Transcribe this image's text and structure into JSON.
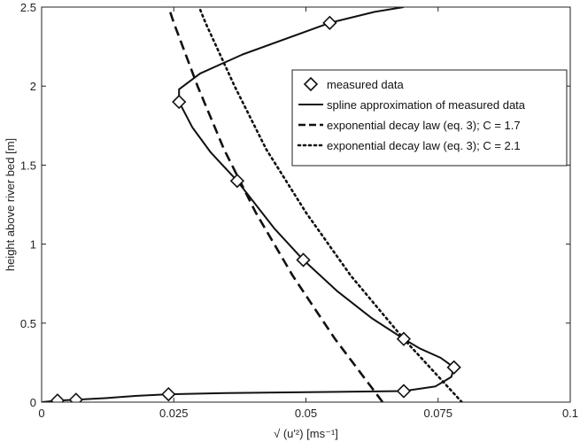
{
  "chart_data": {
    "type": "line",
    "title": "",
    "xlabel": "√ (u'²) [ms⁻¹]",
    "ylabel": "height above river bed [m]",
    "xlim": [
      0,
      0.1
    ],
    "ylim": [
      0,
      2.5
    ],
    "x_ticks": [
      {
        "value": 0,
        "label": "0"
      },
      {
        "value": 0.025,
        "label": "0.025"
      },
      {
        "value": 0.05,
        "label": "0.05"
      },
      {
        "value": 0.075,
        "label": "0.075"
      },
      {
        "value": 0.1,
        "label": "0.1"
      }
    ],
    "y_ticks": [
      {
        "value": 0,
        "label": "0"
      },
      {
        "value": 0.5,
        "label": "0.5"
      },
      {
        "value": 1,
        "label": "1"
      },
      {
        "value": 1.5,
        "label": "1.5"
      },
      {
        "value": 2,
        "label": "2"
      },
      {
        "value": 2.5,
        "label": "2.5"
      }
    ],
    "grid": false,
    "legend_position": "top-right",
    "series": [
      {
        "name": "measured data",
        "style": "diamond-marker",
        "points": [
          {
            "x": 0.003,
            "y": 0.01
          },
          {
            "x": 0.0065,
            "y": 0.015
          },
          {
            "x": 0.024,
            "y": 0.05
          },
          {
            "x": 0.0685,
            "y": 0.07
          },
          {
            "x": 0.078,
            "y": 0.22
          },
          {
            "x": 0.0685,
            "y": 0.4
          },
          {
            "x": 0.0495,
            "y": 0.9
          },
          {
            "x": 0.037,
            "y": 1.4
          },
          {
            "x": 0.026,
            "y": 1.9
          },
          {
            "x": 0.0545,
            "y": 2.4
          }
        ]
      },
      {
        "name": "spline approximation of measured data",
        "style": "solid",
        "points": [
          {
            "x": 0.0,
            "y": 0.0
          },
          {
            "x": 0.003,
            "y": 0.01
          },
          {
            "x": 0.0065,
            "y": 0.015
          },
          {
            "x": 0.012,
            "y": 0.025
          },
          {
            "x": 0.018,
            "y": 0.04
          },
          {
            "x": 0.024,
            "y": 0.05
          },
          {
            "x": 0.035,
            "y": 0.058
          },
          {
            "x": 0.05,
            "y": 0.063
          },
          {
            "x": 0.0685,
            "y": 0.07
          },
          {
            "x": 0.0745,
            "y": 0.1
          },
          {
            "x": 0.0775,
            "y": 0.16
          },
          {
            "x": 0.078,
            "y": 0.22
          },
          {
            "x": 0.0755,
            "y": 0.28
          },
          {
            "x": 0.0715,
            "y": 0.34
          },
          {
            "x": 0.0685,
            "y": 0.4
          },
          {
            "x": 0.0625,
            "y": 0.53
          },
          {
            "x": 0.056,
            "y": 0.7
          },
          {
            "x": 0.0495,
            "y": 0.9
          },
          {
            "x": 0.044,
            "y": 1.1
          },
          {
            "x": 0.0405,
            "y": 1.25
          },
          {
            "x": 0.037,
            "y": 1.4
          },
          {
            "x": 0.032,
            "y": 1.58
          },
          {
            "x": 0.0285,
            "y": 1.74
          },
          {
            "x": 0.026,
            "y": 1.9
          },
          {
            "x": 0.026,
            "y": 1.98
          },
          {
            "x": 0.03,
            "y": 2.08
          },
          {
            "x": 0.038,
            "y": 2.2
          },
          {
            "x": 0.0545,
            "y": 2.4
          },
          {
            "x": 0.063,
            "y": 2.47
          },
          {
            "x": 0.0685,
            "y": 2.5
          }
        ]
      },
      {
        "name": "exponential decay law (eq. 3); C = 1.7",
        "style": "dashed",
        "points": [
          {
            "x": 0.0645,
            "y": 0.0
          },
          {
            "x": 0.0555,
            "y": 0.4
          },
          {
            "x": 0.0475,
            "y": 0.8
          },
          {
            "x": 0.0405,
            "y": 1.2
          },
          {
            "x": 0.0345,
            "y": 1.6
          },
          {
            "x": 0.0295,
            "y": 2.0
          },
          {
            "x": 0.025,
            "y": 2.4
          },
          {
            "x": 0.024,
            "y": 2.5
          }
        ]
      },
      {
        "name": "exponential decay law (eq. 3); C = 2.1",
        "style": "dotted",
        "points": [
          {
            "x": 0.0795,
            "y": 0.0
          },
          {
            "x": 0.0685,
            "y": 0.4
          },
          {
            "x": 0.0585,
            "y": 0.8
          },
          {
            "x": 0.05,
            "y": 1.2
          },
          {
            "x": 0.0425,
            "y": 1.6
          },
          {
            "x": 0.0365,
            "y": 2.0
          },
          {
            "x": 0.031,
            "y": 2.4
          },
          {
            "x": 0.0298,
            "y": 2.5
          }
        ]
      }
    ]
  }
}
